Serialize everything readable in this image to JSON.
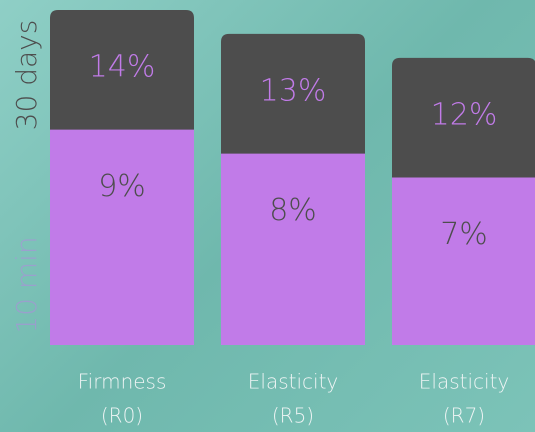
{
  "chart_data": {
    "type": "bar",
    "categories": [
      [
        "Firmness",
        "(R0)"
      ],
      [
        "Elasticity",
        "(R5)"
      ],
      [
        "Elasticity",
        "(R7)"
      ]
    ],
    "series": [
      {
        "name": "30 days",
        "color": "#4d4d4d",
        "label_color": "#c17be8",
        "values": [
          14,
          13,
          12
        ],
        "value_labels": [
          "14%",
          "13%",
          "12%"
        ]
      },
      {
        "name": "10 min",
        "color": "#c17be8",
        "label_color": "#4d4d4d",
        "values": [
          9,
          8,
          7
        ],
        "value_labels": [
          "9%",
          "8%",
          "7%"
        ]
      }
    ]
  }
}
